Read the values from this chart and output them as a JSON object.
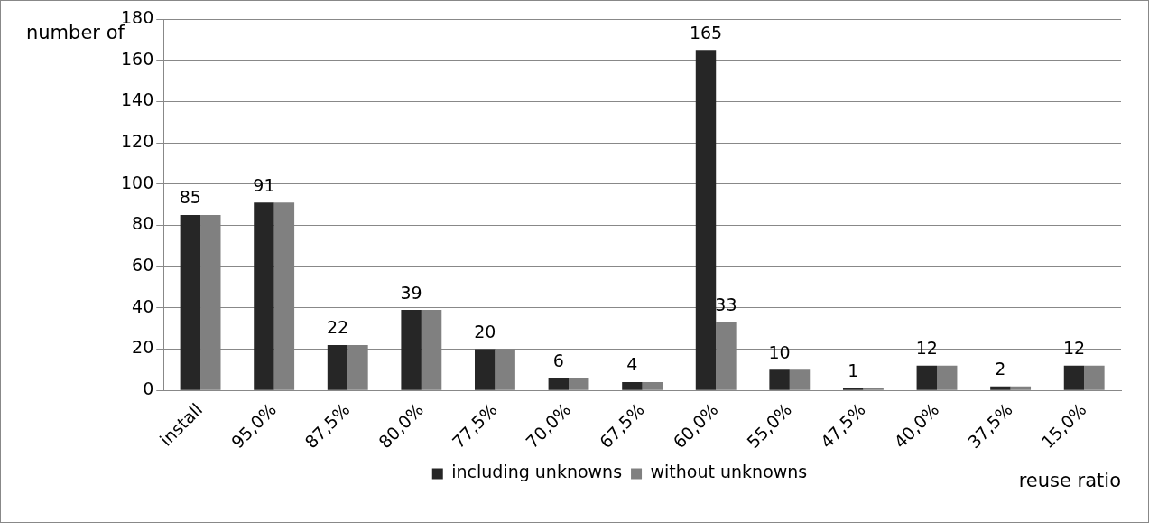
{
  "chart_data": {
    "type": "bar",
    "ylabel": "number of",
    "xlabel": "reuse ratio",
    "categories": [
      "install",
      "95,0%",
      "87,5%",
      "80,0%",
      "77,5%",
      "70,0%",
      "67,5%",
      "60,0%",
      "55,0%",
      "47,5%",
      "40,0%",
      "37,5%",
      "15,0%"
    ],
    "series": [
      {
        "name": "including unknowns",
        "color": "#262626",
        "values": [
          85,
          91,
          22,
          39,
          20,
          6,
          4,
          165,
          10,
          1,
          12,
          2,
          12
        ],
        "value_labels": [
          "85",
          "91",
          "22",
          "39",
          "20",
          "6",
          "4",
          "165",
          "10",
          "1",
          "12",
          "2",
          "12"
        ]
      },
      {
        "name": "without unknowns",
        "color": "#808080",
        "values": [
          85,
          91,
          22,
          39,
          20,
          6,
          4,
          33,
          10,
          1,
          12,
          2,
          12
        ],
        "value_labels": [
          null,
          null,
          null,
          null,
          null,
          null,
          null,
          "33",
          null,
          null,
          null,
          null,
          null
        ]
      }
    ],
    "ylim": [
      0,
      180
    ],
    "yticks": [
      0,
      20,
      40,
      60,
      80,
      100,
      120,
      140,
      160,
      180
    ],
    "grid": "y",
    "legend": "bottom"
  }
}
